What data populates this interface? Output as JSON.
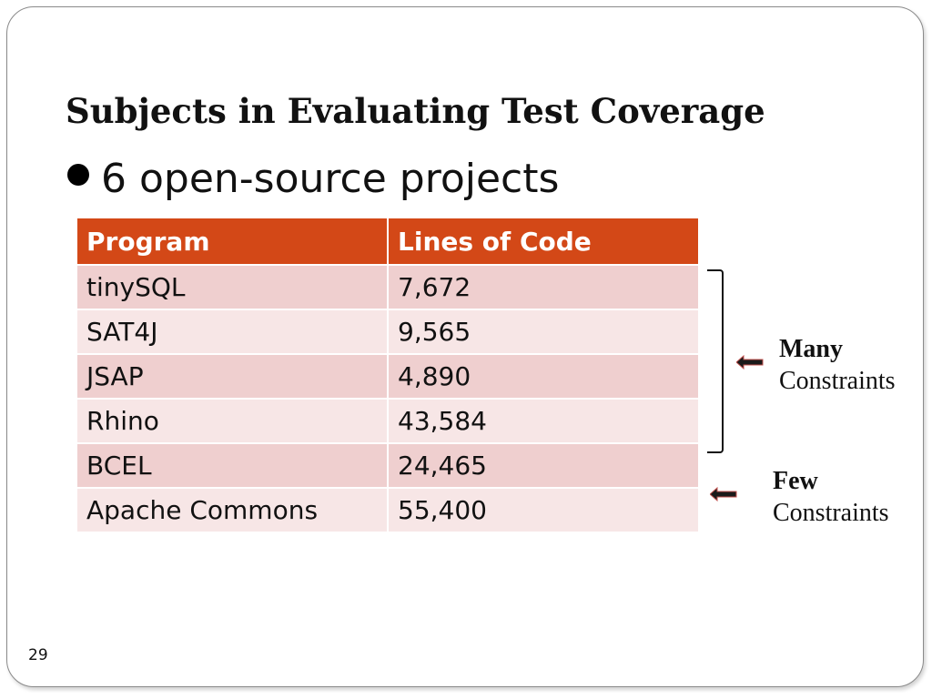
{
  "slide": {
    "title": "Subjects in Evaluating Test Coverage",
    "bullet": "6 open-source projects",
    "page_number": "29"
  },
  "table": {
    "headers": [
      "Program",
      "Lines of Code"
    ],
    "rows": [
      [
        "tinySQL",
        "7,672"
      ],
      [
        "SAT4J",
        "9,565"
      ],
      [
        "JSAP",
        "4,890"
      ],
      [
        "Rhino",
        "43,584"
      ],
      [
        "BCEL",
        "24,465"
      ],
      [
        "Apache Commons",
        "55,400"
      ]
    ]
  },
  "annotations": {
    "many": {
      "strong": "Many",
      "text": "Constraints",
      "icon": "left-arrow-icon"
    },
    "few": {
      "strong": "Few",
      "text": "Constraints",
      "icon": "left-arrow-icon"
    }
  },
  "colors": {
    "header_bg": "#d34817",
    "row_odd": "#efcfcf",
    "row_even": "#f7e6e6",
    "arrow_fill": "#1a1a1a",
    "arrow_outline": "#c0504d"
  }
}
